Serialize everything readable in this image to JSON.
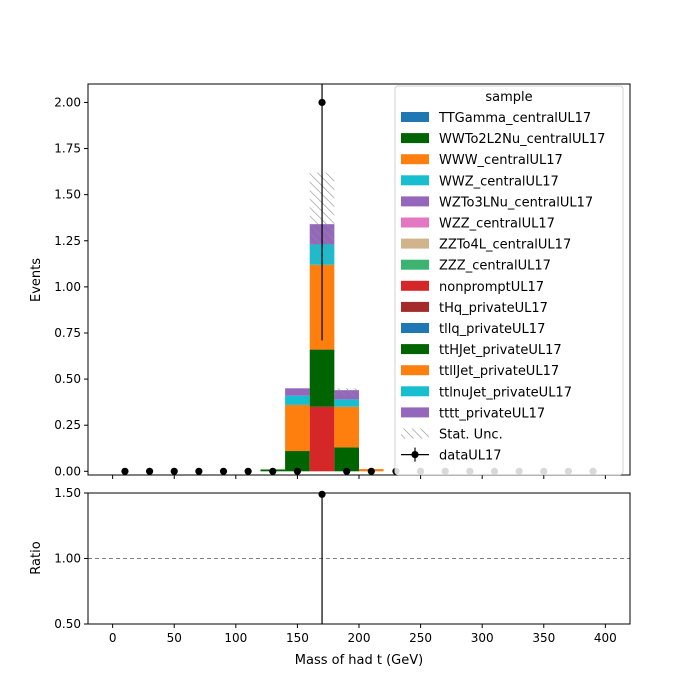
{
  "chart_data": {
    "type": "bar",
    "stacked": true,
    "xlabel": "Mass of had t (GeV)",
    "ylabel": "Events",
    "ratio_ylabel": "Ratio",
    "xlim": [
      -20,
      420
    ],
    "ylim": [
      -0.02,
      2.1
    ],
    "ratio_ylim": [
      0.5,
      1.5
    ],
    "x_ticks": [
      0,
      50,
      100,
      150,
      200,
      250,
      300,
      350,
      400
    ],
    "y_ticks": [
      0.0,
      0.25,
      0.5,
      0.75,
      1.0,
      1.25,
      1.5,
      1.75,
      2.0
    ],
    "y_tick_labels": [
      "0.00",
      "0.25",
      "0.50",
      "0.75",
      "1.00",
      "1.25",
      "1.50",
      "1.75",
      "2.00"
    ],
    "ratio_ticks": [
      0.5,
      1.0,
      1.5
    ],
    "ratio_tick_labels": [
      "0.50",
      "1.00",
      "1.50"
    ],
    "bin_edges": [
      0,
      20,
      40,
      60,
      80,
      100,
      120,
      140,
      160,
      180,
      200,
      220,
      240,
      260,
      280,
      300,
      320,
      340,
      360,
      380,
      400
    ],
    "legend": {
      "title": "sample",
      "placement": "upper right",
      "stat_unc_label": "Stat. Unc.",
      "data_label": "dataUL17"
    },
    "series": [
      {
        "name": "TTGamma_centralUL17",
        "color": "#1f77b4",
        "values": [
          0,
          0,
          0,
          0,
          0,
          0,
          0,
          0,
          0,
          0,
          0,
          0,
          0,
          0,
          0,
          0,
          0,
          0,
          0,
          0
        ]
      },
      {
        "name": "WWTo2L2Nu_centralUL17",
        "color": "#006400",
        "values": [
          0,
          0,
          0,
          0,
          0,
          0,
          0,
          0,
          0,
          0,
          0,
          0,
          0,
          0,
          0,
          0,
          0,
          0,
          0,
          0
        ]
      },
      {
        "name": "WWW_centralUL17",
        "color": "#ff7f0e",
        "values": [
          0,
          0,
          0,
          0,
          0,
          0,
          0,
          0,
          0,
          0,
          0,
          0,
          0,
          0,
          0,
          0,
          0,
          0,
          0,
          0
        ]
      },
      {
        "name": "WWZ_centralUL17",
        "color": "#17becf",
        "values": [
          0,
          0,
          0,
          0,
          0,
          0,
          0,
          0,
          0,
          0,
          0,
          0,
          0,
          0,
          0,
          0,
          0,
          0,
          0,
          0
        ]
      },
      {
        "name": "WZTo3LNu_centralUL17",
        "color": "#9467bd",
        "values": [
          0,
          0,
          0,
          0,
          0,
          0,
          0,
          0,
          0,
          0,
          0,
          0,
          0,
          0,
          0,
          0,
          0,
          0,
          0,
          0
        ]
      },
      {
        "name": "WZZ_centralUL17",
        "color": "#e377c2",
        "values": [
          0,
          0,
          0,
          0,
          0,
          0,
          0,
          0,
          0,
          0,
          0,
          0,
          0,
          0,
          0,
          0,
          0,
          0,
          0,
          0
        ]
      },
      {
        "name": "ZZTo4L_centralUL17",
        "color": "#d2b48c",
        "values": [
          0,
          0,
          0,
          0,
          0,
          0,
          0,
          0,
          0,
          0,
          0,
          0,
          0,
          0,
          0,
          0,
          0,
          0,
          0,
          0
        ]
      },
      {
        "name": "ZZZ_centralUL17",
        "color": "#3cb371",
        "values": [
          0,
          0,
          0,
          0,
          0,
          0,
          0,
          0,
          0,
          0,
          0,
          0,
          0,
          0,
          0,
          0,
          0,
          0,
          0,
          0
        ]
      },
      {
        "name": "nonpromptUL17",
        "color": "#d62728",
        "values": [
          0,
          0,
          0,
          0,
          0,
          0,
          0,
          0,
          0.35,
          0,
          0,
          0,
          0,
          0,
          0,
          0,
          0,
          0,
          0,
          0
        ]
      },
      {
        "name": "tHq_privateUL17",
        "color": "#a52a2a",
        "values": [
          0,
          0,
          0,
          0,
          0,
          0,
          0,
          0,
          0,
          0,
          0,
          0,
          0,
          0,
          0,
          0,
          0,
          0,
          0,
          0
        ]
      },
      {
        "name": "tllq_privateUL17",
        "color": "#1f77b4",
        "values": [
          0,
          0,
          0,
          0,
          0,
          0,
          0,
          0,
          0,
          0,
          0,
          0,
          0,
          0,
          0,
          0,
          0,
          0,
          0,
          0
        ]
      },
      {
        "name": "ttHJet_privateUL17",
        "color": "#006400",
        "values": [
          0,
          0,
          0,
          0,
          0,
          0,
          0.01,
          0.11,
          0.31,
          0.13,
          0,
          0,
          0,
          0,
          0,
          0,
          0,
          0,
          0,
          0
        ]
      },
      {
        "name": "ttllJet_privateUL17",
        "color": "#ff7f0e",
        "values": [
          0,
          0,
          0,
          0,
          0,
          0,
          0,
          0.25,
          0.46,
          0.22,
          0.012,
          0,
          0,
          0,
          0,
          0,
          0,
          0,
          0,
          0
        ]
      },
      {
        "name": "ttlnuJet_privateUL17",
        "color": "#17becf",
        "values": [
          0,
          0,
          0,
          0,
          0,
          0,
          0,
          0.05,
          0.11,
          0.04,
          0,
          0,
          0,
          0,
          0,
          0,
          0,
          0,
          0,
          0
        ]
      },
      {
        "name": "tttt_privateUL17",
        "color": "#9467bd",
        "values": [
          0,
          0,
          0,
          0,
          0,
          0,
          0,
          0.04,
          0.11,
          0.05,
          0,
          0,
          0,
          0,
          0,
          0,
          0,
          0,
          0,
          0
        ]
      }
    ],
    "stat_unc": [
      {
        "x_lo": 160,
        "x_hi": 180,
        "lo": 1.13,
        "hi": 1.62
      },
      {
        "x_lo": 180,
        "x_hi": 200,
        "lo": 0.41,
        "hi": 0.45
      }
    ],
    "data_points": {
      "name": "dataUL17",
      "x": [
        10,
        30,
        50,
        70,
        90,
        110,
        130,
        150,
        170,
        190,
        210,
        230,
        250,
        270,
        290,
        310,
        330,
        350,
        370,
        390
      ],
      "y": [
        0,
        0,
        0,
        0,
        0,
        0,
        0,
        0,
        2,
        0,
        0,
        0,
        0,
        0,
        0,
        0,
        0,
        0,
        0,
        0
      ],
      "yerr_lo": [
        0,
        0,
        0,
        0,
        0,
        0,
        0,
        0,
        1.29,
        0,
        0,
        0,
        0,
        0,
        0,
        0,
        0,
        0,
        0,
        0
      ],
      "yerr_hi": [
        0,
        0,
        0,
        0,
        0,
        0,
        0,
        0,
        2.64,
        0,
        0,
        0,
        0,
        0,
        0,
        0,
        0,
        0,
        0,
        0
      ]
    },
    "ratio": {
      "reference_line": 1.0,
      "x": [
        170
      ],
      "y": [
        1.49
      ],
      "yerr_lo": [
        1.0
      ],
      "yerr_hi": [
        2.0
      ]
    }
  }
}
